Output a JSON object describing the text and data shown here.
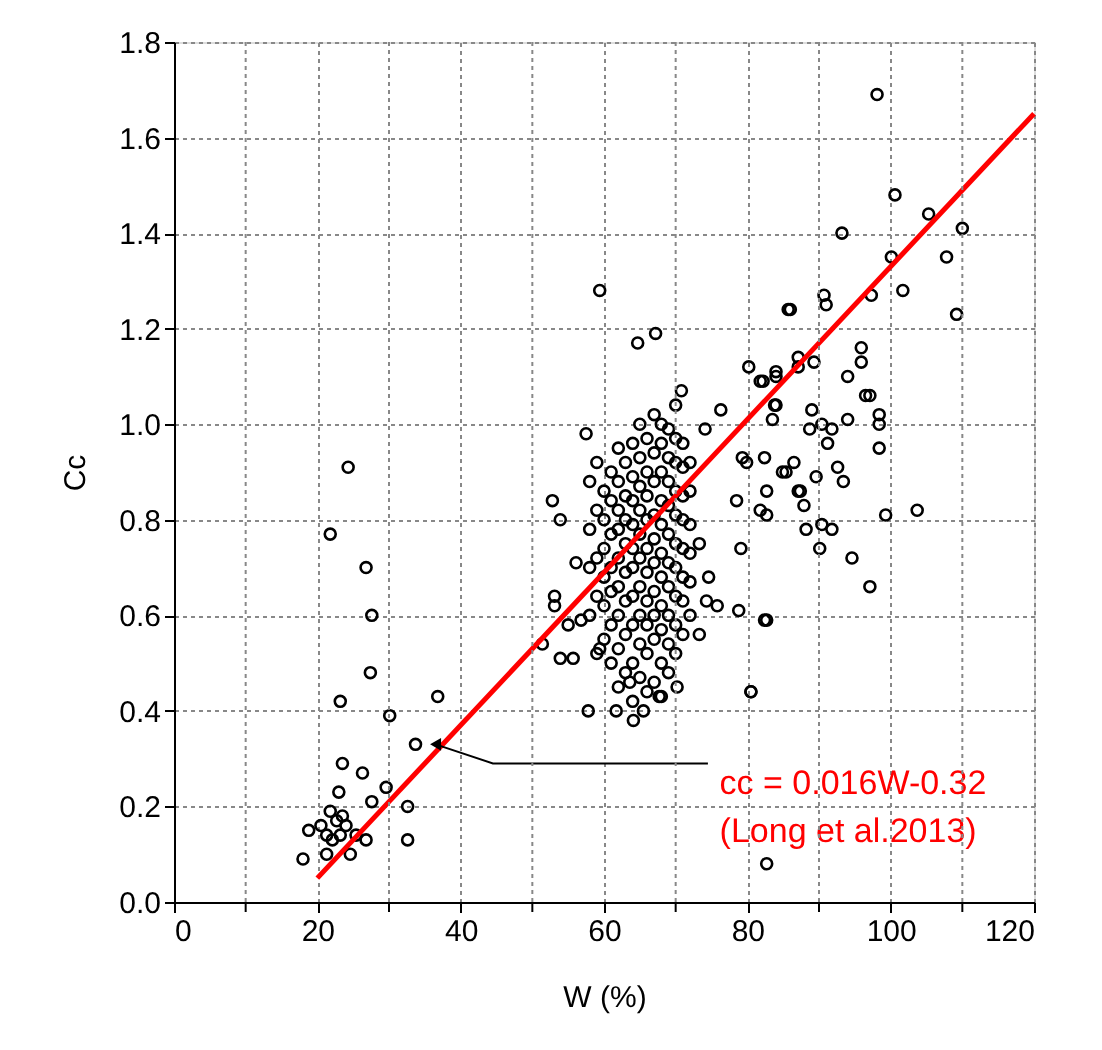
{
  "chart_data": {
    "type": "scatter",
    "xlabel": "W (%)",
    "ylabel": "Cc",
    "xlim": [
      0,
      120
    ],
    "ylim": [
      0,
      1.8
    ],
    "xticks": [
      0,
      {
        "value": 10,
        "label": null
      },
      20,
      {
        "value": 30,
        "label": null
      },
      40,
      {
        "value": 50,
        "label": null
      },
      60,
      {
        "value": 70,
        "label": null
      },
      80,
      {
        "value": 90,
        "label": null
      },
      100,
      {
        "value": 110,
        "label": null
      },
      120
    ],
    "yticks": [
      {
        "value": 0,
        "label": "0.0"
      },
      {
        "value": 0.2,
        "label": "0.2"
      },
      {
        "value": 0.4,
        "label": "0.4"
      },
      {
        "value": 0.6,
        "label": "0.6"
      },
      {
        "value": 0.8,
        "label": "0.8"
      },
      {
        "value": 1.0,
        "label": "1.0"
      },
      {
        "value": 1.2,
        "label": "1.2"
      },
      {
        "value": 1.4,
        "label": "1.4"
      },
      {
        "value": 1.6,
        "label": "1.6"
      },
      {
        "value": 1.8,
        "label": "1.8"
      }
    ],
    "grid": true,
    "series": [
      {
        "marker": "circle",
        "color": "#000000",
        "x": [
          24.3,
          21.8,
          26.8,
          27.6,
          27.4,
          23.2,
          30.1,
          36.8,
          33.7,
          23.5,
          26.3,
          23,
          29.6,
          27.6,
          32.6,
          32.6,
          26.8,
          24.6,
          21.3,
          18,
          18.8,
          20.5,
          21.8,
          22.7,
          23.5,
          24,
          22.1,
          23.2,
          25.4,
          21.3,
          57.5,
          59.4,
          52.8,
          53.9,
          56.1,
          53.1,
          53.1,
          55,
          56.8,
          51.4,
          53.9,
          55.7,
          57.8,
          59.4,
          64.7,
          67.2,
          86,
          70.8,
          76.3,
          74.1,
          61.7,
          64.1,
          65.5,
          80.5,
          82.7,
          78.8,
          82.7,
          79.1,
          78.5,
          79.3,
          82.4,
          81.8,
          84.9,
          86.5,
          87.4,
          81.8,
          84,
          83.8,
          75.8,
          74.6,
          73.3,
          74.3,
          73.3,
          70.2,
          67.7,
          63.6,
          98.1,
          100.6,
          105.3,
          110,
          107.8,
          109.2,
          100.1,
          93.2,
          101.7,
          97.3,
          90.7,
          91,
          85.7,
          80.2,
          82.2,
          84,
          87.1,
          87.1,
          89.3,
          95.9,
          95.9,
          94,
          84,
          83.5,
          89,
          88.7,
          90.4,
          91.8,
          91.2,
          94,
          96.5,
          97.1,
          98.4,
          98.4,
          98.4,
          79.9,
          85.4,
          89.6,
          92.6,
          93.4,
          82.7,
          87.1,
          87.9,
          82.7,
          88.2,
          90.4,
          91.8,
          90.1,
          94.6,
          99.3,
          103.7,
          97.1,
          82.4,
          80.5,
          60,
          60,
          60,
          60,
          60,
          60,
          61,
          61,
          61,
          61,
          61,
          61,
          61,
          62,
          62,
          62,
          62,
          62,
          62,
          62,
          62,
          62,
          63,
          63,
          63,
          63,
          63,
          63,
          63,
          63,
          64,
          64,
          64,
          64,
          64,
          64,
          64,
          64,
          64,
          64,
          65,
          65,
          65,
          65,
          65,
          65,
          65,
          65,
          65,
          65,
          66,
          66,
          66,
          66,
          66,
          66,
          66,
          66,
          66,
          66,
          67,
          67,
          67,
          67,
          67,
          67,
          67,
          67,
          67,
          67,
          68,
          68,
          68,
          68,
          68,
          68,
          68,
          68,
          68,
          68,
          68,
          69,
          69,
          69,
          69,
          69,
          69,
          69,
          69,
          69,
          69,
          70,
          70,
          70,
          70,
          70,
          70,
          70,
          70,
          70,
          70,
          71,
          71,
          71,
          71,
          71,
          71,
          71,
          71,
          72,
          72,
          72,
          72,
          72,
          72,
          58,
          58,
          58,
          58,
          59,
          59,
          59,
          59,
          59
        ],
        "values": [
          0.91,
          0.77,
          0.7,
          0.6,
          0.48,
          0.42,
          0.39,
          0.43,
          0.33,
          0.29,
          0.27,
          0.23,
          0.24,
          0.21,
          0.2,
          0.13,
          0.13,
          0.1,
          0.1,
          0.09,
          0.15,
          0.16,
          0.19,
          0.17,
          0.18,
          0.16,
          0.13,
          0.14,
          0.14,
          0.14,
          0.98,
          1.28,
          0.84,
          0.8,
          0.71,
          0.64,
          0.62,
          0.58,
          0.59,
          0.54,
          0.51,
          0.51,
          0.4,
          0.53,
          1.17,
          1.19,
          1.24,
          1.07,
          1.03,
          0.99,
          0.4,
          0.38,
          0.4,
          0.44,
          0.08,
          0.61,
          0.59,
          0.74,
          0.84,
          0.93,
          0.93,
          0.82,
          0.9,
          0.92,
          0.86,
          1.09,
          1.1,
          1.04,
          0.62,
          0.68,
          0.75,
          0.63,
          0.56,
          0.45,
          0.43,
          0.46,
          1.69,
          1.48,
          1.44,
          1.41,
          1.35,
          1.23,
          1.35,
          1.4,
          1.28,
          1.27,
          1.27,
          1.25,
          1.24,
          1.12,
          1.09,
          1.11,
          1.14,
          1.12,
          1.13,
          1.16,
          1.13,
          1.1,
          1.04,
          1.01,
          1.03,
          0.99,
          1.0,
          0.99,
          0.96,
          1.01,
          1.06,
          1.06,
          1.02,
          1.0,
          0.95,
          0.92,
          0.9,
          0.89,
          0.91,
          0.88,
          0.86,
          0.86,
          0.83,
          0.81,
          0.78,
          0.79,
          0.78,
          0.74,
          0.72,
          0.81,
          0.82,
          0.66,
          0.59,
          0.44,
          0.55,
          0.62,
          0.68,
          0.74,
          0.8,
          0.86,
          0.5,
          0.58,
          0.65,
          0.7,
          0.77,
          0.84,
          0.9,
          0.45,
          0.53,
          0.6,
          0.66,
          0.72,
          0.78,
          0.82,
          0.88,
          0.95,
          0.48,
          0.56,
          0.63,
          0.69,
          0.75,
          0.8,
          0.85,
          0.92,
          0.42,
          0.5,
          0.58,
          0.64,
          0.7,
          0.74,
          0.79,
          0.84,
          0.89,
          0.96,
          0.47,
          0.54,
          0.6,
          0.66,
          0.72,
          0.77,
          0.82,
          0.87,
          0.93,
          1.0,
          0.44,
          0.52,
          0.58,
          0.63,
          0.69,
          0.74,
          0.8,
          0.85,
          0.9,
          0.97,
          0.46,
          0.55,
          0.6,
          0.65,
          0.71,
          0.76,
          0.81,
          0.88,
          0.94,
          1.02,
          0.43,
          0.5,
          0.57,
          0.62,
          0.68,
          0.73,
          0.79,
          0.84,
          0.9,
          0.96,
          1.0,
          0.48,
          0.54,
          0.6,
          0.66,
          0.71,
          0.77,
          0.83,
          0.88,
          0.93,
          0.99,
          0.52,
          0.58,
          0.64,
          0.7,
          0.75,
          0.81,
          0.86,
          0.92,
          0.97,
          1.04,
          0.56,
          0.63,
          0.68,
          0.74,
          0.8,
          0.85,
          0.91,
          0.96,
          0.6,
          0.67,
          0.73,
          0.79,
          0.86,
          0.92,
          0.6,
          0.7,
          0.78,
          0.88,
          0.52,
          0.64,
          0.72,
          0.82,
          0.92
        ]
      },
      {
        "type": "line",
        "color": "#ff0000",
        "x": [
          20,
          120
        ],
        "values": [
          0.05,
          1.65
        ]
      }
    ],
    "annotations": [
      {
        "text": "cc = 0.016W-0.32\n(Long et al.2013)",
        "x": 36.5,
        "y": 0.33
      }
    ]
  }
}
